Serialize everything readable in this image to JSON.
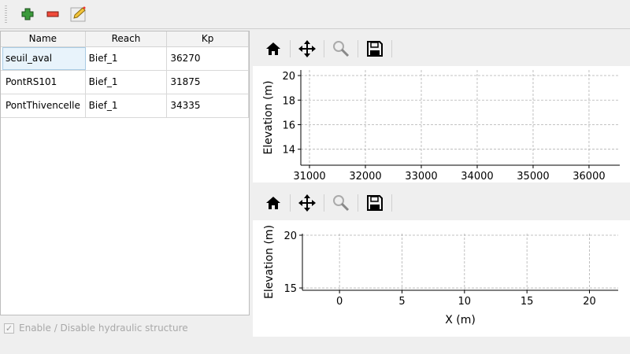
{
  "toolbar": {
    "icons": [
      "add-icon",
      "remove-icon",
      "edit-icon"
    ]
  },
  "table": {
    "columns": [
      "Name",
      "Reach",
      "Kp"
    ],
    "rows": [
      [
        "seuil_aval",
        "Bief_1",
        "36270"
      ],
      [
        "PontRS101",
        "Bief_1",
        "31875"
      ],
      [
        "PontThivencelle",
        "Bief_1",
        "34335"
      ]
    ]
  },
  "checkbox": {
    "label": "Enable / Disable hydraulic structure",
    "checked": true,
    "enabled": false
  },
  "plot_toolbar": {
    "icons": [
      "home-icon",
      "pan-icon",
      "zoom-icon",
      "save-icon"
    ]
  },
  "chart_data": [
    {
      "type": "line",
      "xlabel": "",
      "ylabel": "Elevation (m)",
      "xlim": [
        30845,
        36550
      ],
      "ylim": [
        12.7,
        20.45
      ],
      "xticks": [
        31000,
        32000,
        33000,
        34000,
        35000,
        36000
      ],
      "yticks": [
        14,
        16,
        18,
        20
      ],
      "grid": true,
      "series": []
    },
    {
      "type": "line",
      "xlabel": "X (m)",
      "ylabel": "Elevation (m)",
      "xlim": [
        -2.97,
        22.3
      ],
      "ylim": [
        14.78,
        20.15
      ],
      "xticks": [
        0,
        5,
        10,
        15,
        20
      ],
      "yticks": [
        15,
        20
      ],
      "grid": true,
      "series": []
    }
  ]
}
